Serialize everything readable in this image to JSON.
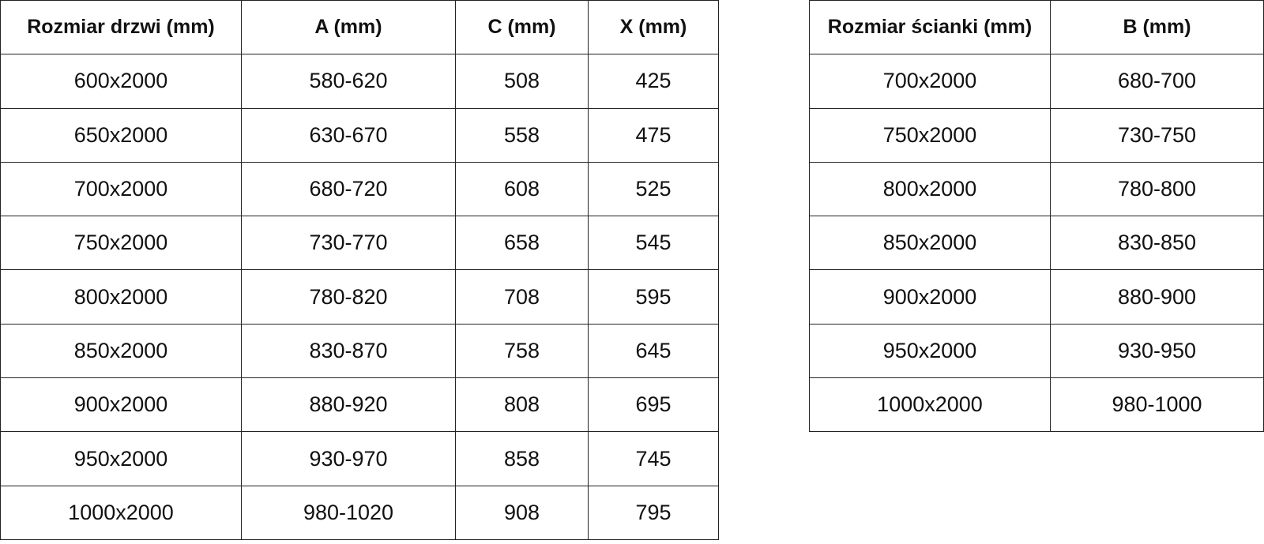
{
  "door_table": {
    "headers": [
      "Rozmiar drzwi (mm)",
      "A (mm)",
      "C (mm)",
      "X (mm)"
    ],
    "rows": [
      [
        "600x2000",
        "580-620",
        "508",
        "425"
      ],
      [
        "650x2000",
        "630-670",
        "558",
        "475"
      ],
      [
        "700x2000",
        "680-720",
        "608",
        "525"
      ],
      [
        "750x2000",
        "730-770",
        "658",
        "545"
      ],
      [
        "800x2000",
        "780-820",
        "708",
        "595"
      ],
      [
        "850x2000",
        "830-870",
        "758",
        "645"
      ],
      [
        "900x2000",
        "880-920",
        "808",
        "695"
      ],
      [
        "950x2000",
        "930-970",
        "858",
        "745"
      ],
      [
        "1000x2000",
        "980-1020",
        "908",
        "795"
      ]
    ]
  },
  "wall_table": {
    "headers": [
      "Rozmiar ścianki (mm)",
      "B (mm)"
    ],
    "rows": [
      [
        "700x2000",
        "680-700"
      ],
      [
        "750x2000",
        "730-750"
      ],
      [
        "800x2000",
        "780-800"
      ],
      [
        "850x2000",
        "830-850"
      ],
      [
        "900x2000",
        "880-900"
      ],
      [
        "950x2000",
        "930-950"
      ],
      [
        "1000x2000",
        "980-1000"
      ]
    ]
  }
}
